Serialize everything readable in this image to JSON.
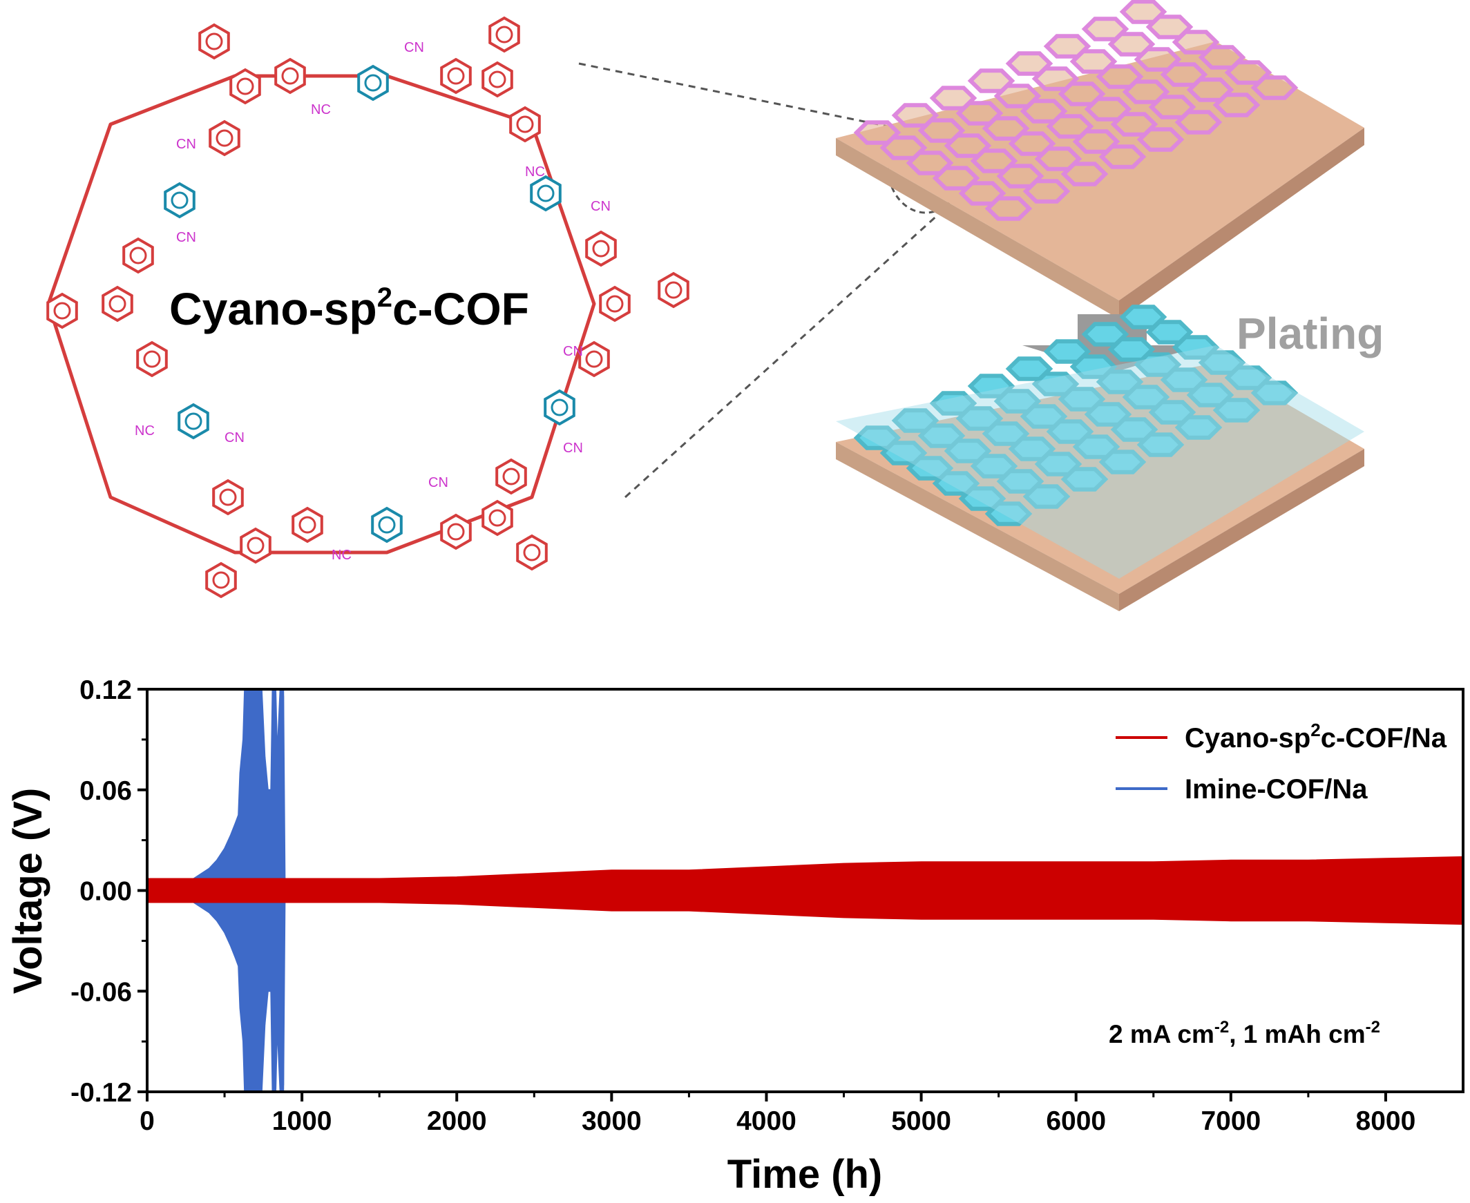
{
  "schematic": {
    "title_prefix": "Cyano-sp",
    "title_sup": "2",
    "title_suffix": "c-COF",
    "cn_label": "CN",
    "nc_label": "NC",
    "plating_label": "Plating",
    "colors": {
      "core": "#d53d3d",
      "vinyl": "#cc33cc",
      "linker": "#1a8aaa",
      "substrate": "#e4b698",
      "cof": "#dd88dd",
      "metal": "#66d4e6"
    }
  },
  "chart_data": {
    "type": "line",
    "xlabel": "Time (h)",
    "ylabel": "Voltage (V)",
    "xlim": [
      0,
      8500
    ],
    "ylim": [
      -0.12,
      0.12
    ],
    "xticks": [
      "0",
      "1000",
      "2000",
      "3000",
      "4000",
      "5000",
      "6000",
      "7000",
      "8000"
    ],
    "yticks": [
      "0.12",
      "0.06",
      "0.00",
      "-0.06",
      "-0.12"
    ],
    "annotation": {
      "main": "2 mA cm",
      "exp1": "-2",
      "mid": ", 1 mAh cm",
      "exp2": "-2"
    },
    "series": [
      {
        "name": "Cyano-sp2c-COF/Na",
        "legend_prefix": "Cyano-sp",
        "legend_sup": "2",
        "legend_suffix": "c-COF/Na",
        "color": "#cc0000",
        "envelope": [
          [
            0,
            0.007
          ],
          [
            1000,
            0.007
          ],
          [
            1500,
            0.007
          ],
          [
            2000,
            0.008
          ],
          [
            2500,
            0.01
          ],
          [
            3000,
            0.012
          ],
          [
            3500,
            0.012
          ],
          [
            4000,
            0.014
          ],
          [
            4500,
            0.016
          ],
          [
            5000,
            0.017
          ],
          [
            5500,
            0.017
          ],
          [
            6000,
            0.017
          ],
          [
            6500,
            0.017
          ],
          [
            7000,
            0.018
          ],
          [
            7500,
            0.018
          ],
          [
            8000,
            0.019
          ],
          [
            8500,
            0.02
          ]
        ]
      },
      {
        "name": "Imine-COF/Na",
        "legend_label": "Imine-COF/Na",
        "color": "#3e6ac8",
        "envelope": [
          [
            0,
            0.006
          ],
          [
            150,
            0.005
          ],
          [
            300,
            0.007
          ],
          [
            400,
            0.013
          ],
          [
            450,
            0.018
          ],
          [
            500,
            0.025
          ],
          [
            540,
            0.033
          ],
          [
            570,
            0.04
          ],
          [
            590,
            0.045
          ],
          [
            600,
            0.07
          ],
          [
            620,
            0.09
          ],
          [
            630,
            0.12
          ],
          [
            700,
            0.12
          ],
          [
            740,
            0.12
          ],
          [
            760,
            0.08
          ],
          [
            780,
            0.06
          ],
          [
            800,
            0.06
          ],
          [
            810,
            0.12
          ],
          [
            830,
            0.12
          ],
          [
            840,
            0.08
          ],
          [
            860,
            0.12
          ],
          [
            880,
            0.12
          ],
          [
            890,
            0.0
          ]
        ]
      }
    ]
  }
}
